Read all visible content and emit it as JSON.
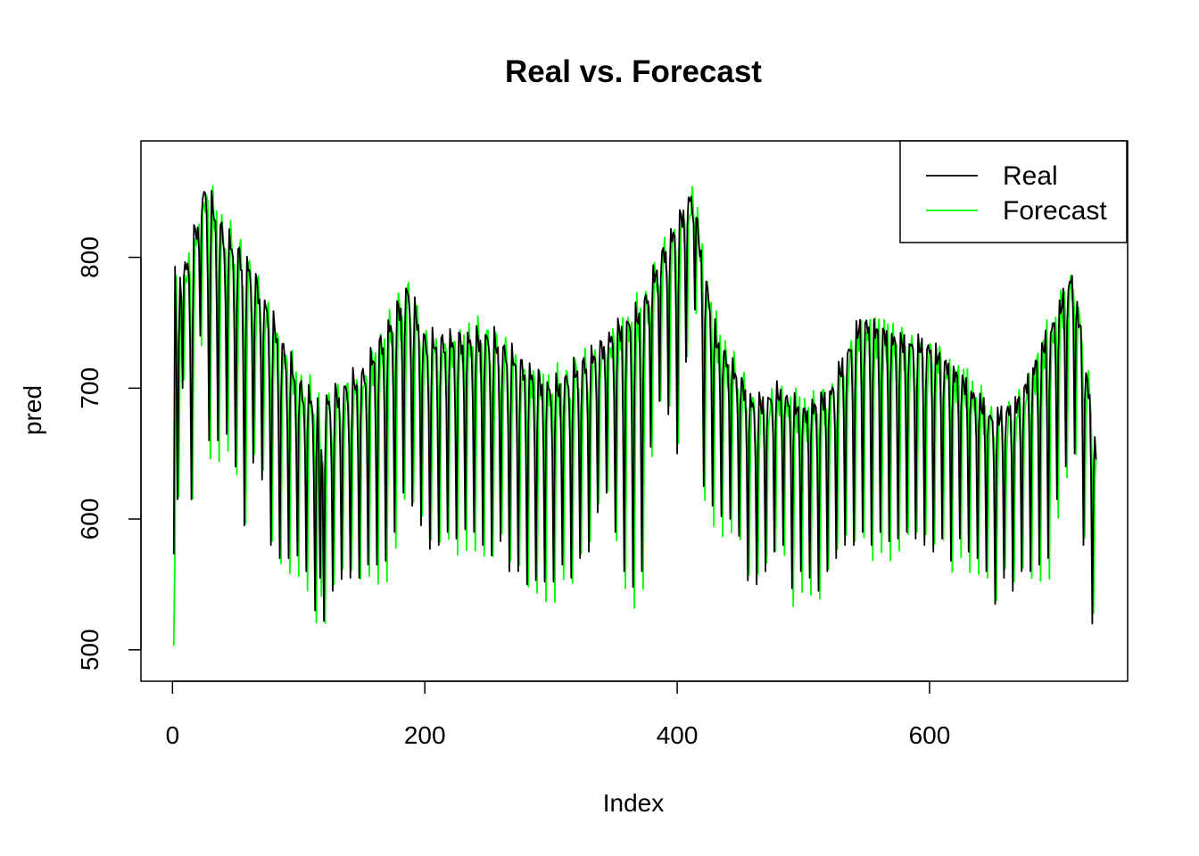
{
  "chart_data": {
    "type": "line",
    "title": "Real vs. Forecast",
    "xlabel": "Index",
    "ylabel": "pred",
    "xlim": [
      0,
      732
    ],
    "ylim": [
      480,
      885
    ],
    "x_ticks": [
      0,
      200,
      400,
      600
    ],
    "y_ticks": [
      500,
      600,
      700,
      800
    ],
    "x_tick_labels": [
      "0",
      "200",
      "400",
      "600"
    ],
    "y_tick_labels": [
      "500",
      "600",
      "700",
      "800"
    ],
    "grid": false,
    "legend_position": "top-right",
    "n_points": 732,
    "series": [
      {
        "name": "Real",
        "color": "#000000",
        "trend_knots": [
          [
            0,
            790
          ],
          [
            10,
            790
          ],
          [
            25,
            850
          ],
          [
            40,
            815
          ],
          [
            60,
            790
          ],
          [
            80,
            745
          ],
          [
            100,
            700
          ],
          [
            115,
            685
          ],
          [
            130,
            695
          ],
          [
            150,
            710
          ],
          [
            170,
            745
          ],
          [
            185,
            775
          ],
          [
            200,
            735
          ],
          [
            250,
            740
          ],
          [
            280,
            715
          ],
          [
            300,
            700
          ],
          [
            330,
            725
          ],
          [
            350,
            745
          ],
          [
            370,
            760
          ],
          [
            385,
            800
          ],
          [
            410,
            850
          ],
          [
            430,
            740
          ],
          [
            460,
            690
          ],
          [
            480,
            700
          ],
          [
            500,
            685
          ],
          [
            520,
            700
          ],
          [
            545,
            755
          ],
          [
            575,
            740
          ],
          [
            600,
            735
          ],
          [
            625,
            710
          ],
          [
            650,
            680
          ],
          [
            670,
            695
          ],
          [
            700,
            760
          ],
          [
            712,
            790
          ],
          [
            720,
            740
          ],
          [
            732,
            650
          ]
        ],
        "dips": [
          [
            3,
            600,
            615
          ],
          [
            7,
            625,
            700
          ],
          [
            14,
            600,
            615
          ],
          [
            21,
            590,
            740
          ],
          [
            28,
            600,
            660
          ],
          [
            35,
            605,
            660
          ],
          [
            42,
            600,
            665
          ],
          [
            49,
            600,
            640
          ],
          [
            56,
            600,
            595
          ],
          [
            63,
            600,
            643
          ],
          [
            70,
            600,
            630
          ],
          [
            77,
            600,
            580
          ],
          [
            84,
            600,
            570
          ],
          [
            91,
            600,
            570
          ],
          [
            98,
            600,
            572
          ],
          [
            105,
            600,
            560
          ],
          [
            112,
            600,
            530
          ],
          [
            116,
            600,
            555
          ],
          [
            119,
            600,
            522
          ],
          [
            126,
            600,
            545
          ],
          [
            133,
            600,
            554
          ],
          [
            140,
            600,
            555
          ],
          [
            147,
            600,
            555
          ],
          [
            154,
            600,
            565
          ],
          [
            161,
            600,
            565
          ],
          [
            168,
            600,
            568
          ],
          [
            175,
            600,
            590
          ],
          [
            182,
            600,
            620
          ],
          [
            189,
            600,
            610
          ],
          [
            196,
            600,
            595
          ],
          [
            203,
            600,
            577
          ],
          [
            210,
            600,
            580
          ],
          [
            217,
            600,
            590
          ],
          [
            224,
            600,
            585
          ],
          [
            231,
            600,
            592
          ],
          [
            238,
            600,
            590
          ],
          [
            245,
            600,
            580
          ],
          [
            252,
            600,
            572
          ],
          [
            259,
            600,
            583
          ],
          [
            266,
            600,
            560
          ],
          [
            273,
            600,
            560
          ],
          [
            280,
            600,
            550
          ],
          [
            287,
            600,
            553
          ],
          [
            294,
            600,
            552
          ],
          [
            301,
            600,
            552
          ],
          [
            308,
            600,
            565
          ],
          [
            315,
            600,
            555
          ],
          [
            322,
            600,
            570
          ],
          [
            329,
            600,
            575
          ],
          [
            336,
            600,
            605
          ],
          [
            343,
            600,
            620
          ],
          [
            350,
            600,
            590
          ],
          [
            357,
            600,
            560
          ],
          [
            364,
            600,
            548
          ],
          [
            371,
            600,
            560
          ],
          [
            378,
            600,
            655
          ],
          [
            385,
            600,
            690
          ],
          [
            392,
            600,
            680
          ],
          [
            399,
            600,
            650
          ],
          [
            406,
            600,
            720
          ],
          [
            413,
            600,
            760
          ],
          [
            420,
            600,
            625
          ],
          [
            427,
            600,
            610
          ],
          [
            434,
            600,
            602
          ],
          [
            441,
            600,
            600
          ],
          [
            448,
            600,
            587
          ],
          [
            455,
            600,
            553
          ],
          [
            462,
            600,
            550
          ],
          [
            469,
            600,
            560
          ],
          [
            476,
            600,
            575
          ],
          [
            483,
            600,
            580
          ],
          [
            490,
            600,
            547
          ],
          [
            497,
            600,
            560
          ],
          [
            504,
            600,
            555
          ],
          [
            511,
            600,
            545
          ],
          [
            518,
            600,
            560
          ],
          [
            525,
            600,
            570
          ],
          [
            532,
            600,
            580
          ],
          [
            539,
            600,
            580
          ],
          [
            546,
            600,
            590
          ],
          [
            553,
            600,
            580
          ],
          [
            560,
            600,
            590
          ],
          [
            567,
            600,
            583
          ],
          [
            574,
            600,
            585
          ],
          [
            581,
            600,
            590
          ],
          [
            588,
            600,
            585
          ],
          [
            595,
            600,
            580
          ],
          [
            602,
            600,
            575
          ],
          [
            609,
            600,
            585
          ],
          [
            616,
            600,
            568
          ],
          [
            623,
            600,
            585
          ],
          [
            630,
            600,
            575
          ],
          [
            637,
            600,
            570
          ],
          [
            644,
            600,
            560
          ],
          [
            651,
            600,
            535
          ],
          [
            658,
            600,
            555
          ],
          [
            665,
            600,
            545
          ],
          [
            672,
            600,
            560
          ],
          [
            679,
            600,
            560
          ],
          [
            686,
            600,
            565
          ],
          [
            693,
            600,
            570
          ],
          [
            700,
            600,
            615
          ],
          [
            707,
            600,
            640
          ],
          [
            714,
            600,
            650
          ],
          [
            721,
            600,
            580
          ],
          [
            728,
            600,
            520
          ]
        ]
      },
      {
        "name": "Forecast",
        "color": "#00ff00",
        "start_value": 503,
        "lag": 1,
        "noise_amplitude": 12
      }
    ]
  }
}
